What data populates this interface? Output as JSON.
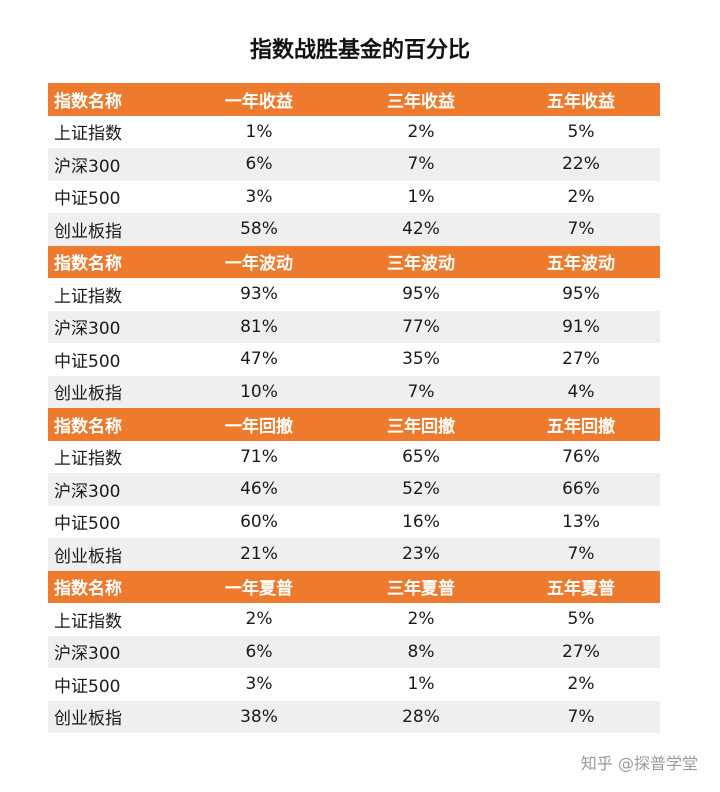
{
  "title": "指数战胜基金的百分比",
  "sections": [
    {
      "header": [
        "指数名称",
        "一年收益",
        "三年收益",
        "五年收益"
      ],
      "rows": [
        [
          "上证指数",
          "1%",
          "2%",
          "5%"
        ],
        [
          "沪深300",
          "6%",
          "7%",
          "22%"
        ],
        [
          "中证500",
          "3%",
          "1%",
          "2%"
        ],
        [
          "创业板指",
          "58%",
          "42%",
          "7%"
        ]
      ]
    },
    {
      "header": [
        "指数名称",
        "一年波动",
        "三年波动",
        "五年波动"
      ],
      "rows": [
        [
          "上证指数",
          "93%",
          "95%",
          "95%"
        ],
        [
          "沪深300",
          "81%",
          "77%",
          "91%"
        ],
        [
          "中证500",
          "47%",
          "35%",
          "27%"
        ],
        [
          "创业板指",
          "10%",
          "7%",
          "4%"
        ]
      ]
    },
    {
      "header": [
        "指数名称",
        "一年回撤",
        "三年回撤",
        "五年回撤"
      ],
      "rows": [
        [
          "上证指数",
          "71%",
          "65%",
          "76%"
        ],
        [
          "沪深300",
          "46%",
          "52%",
          "66%"
        ],
        [
          "中证500",
          "60%",
          "16%",
          "13%"
        ],
        [
          "创业板指",
          "21%",
          "23%",
          "7%"
        ]
      ]
    },
    {
      "header": [
        "指数名称",
        "一年夏普",
        "三年夏普",
        "五年夏普"
      ],
      "rows": [
        [
          "上证指数",
          "2%",
          "2%",
          "5%"
        ],
        [
          "沪深300",
          "6%",
          "8%",
          "27%"
        ],
        [
          "中证500",
          "3%",
          "1%",
          "2%"
        ],
        [
          "创业板指",
          "38%",
          "28%",
          "7%"
        ]
      ]
    }
  ],
  "watermark": "知乎 @探普学堂",
  "colors": {
    "header_bg": "#ee7b2d",
    "stripe_bg": "#efefef",
    "header_text": "#ffffff"
  }
}
